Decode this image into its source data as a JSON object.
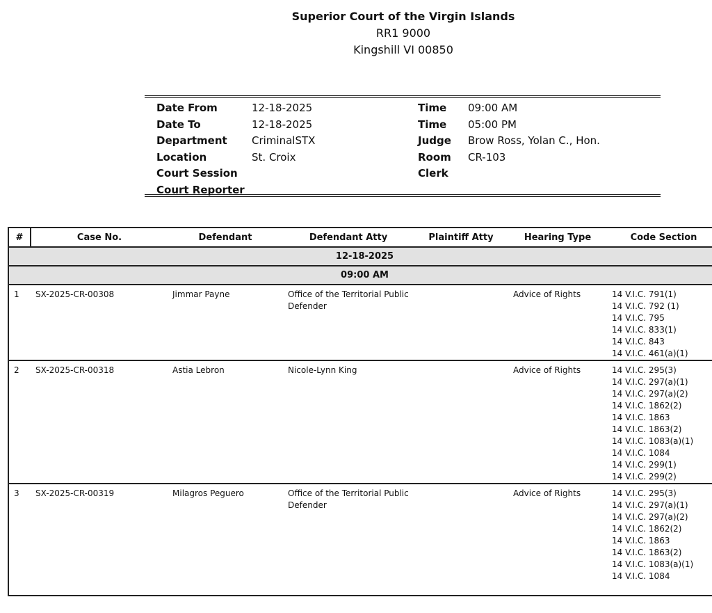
{
  "court": {
    "name": "Superior Court of the Virgin Islands",
    "address1": "RR1 9000",
    "address2": "Kingshill VI 00850"
  },
  "info": [
    {
      "l1": "Date From",
      "v1": "12-18-2025",
      "l2": "Time",
      "v2": "09:00 AM"
    },
    {
      "l1": "Date To",
      "v1": "12-18-2025",
      "l2": "Time",
      "v2": "05:00 PM"
    },
    {
      "l1": "Department",
      "v1": "CriminalSTX",
      "l2": "Judge",
      "v2": "Brow Ross, Yolan C., Hon."
    },
    {
      "l1": "Location",
      "v1": "St. Croix",
      "l2": "Room",
      "v2": "CR-103"
    },
    {
      "l1": "Court Session",
      "v1": "",
      "l2": "Clerk",
      "v2": ""
    },
    {
      "l1": "Court Reporter",
      "v1": "",
      "l2": "",
      "v2": ""
    }
  ],
  "table": {
    "headers": [
      "#",
      "Case No.",
      "Defendant",
      "Defendant Atty",
      "Plaintiff Atty",
      "Hearing Type",
      "Code Section"
    ],
    "date_group": "12-18-2025",
    "time_group": "09:00 AM",
    "rows": [
      {
        "num": "1",
        "case": "SX-2025-CR-00308",
        "defendant": "Jimmar Payne",
        "def_atty": "Office of the Territorial Public Defender",
        "plaintiff_atty": "",
        "hearing": "Advice of Rights",
        "codes": [
          "14 V.I.C. 791(1)",
          "14 V.I.C. 792 (1)",
          "14 V.I.C. 795",
          "14 V.I.C. 833(1)",
          "14 V.I.C. 843",
          "14 V.I.C. 461(a)(1)"
        ]
      },
      {
        "num": "2",
        "case": "SX-2025-CR-00318",
        "defendant": "Astia Lebron",
        "def_atty": "Nicole-Lynn King",
        "plaintiff_atty": "",
        "hearing": "Advice of Rights",
        "codes": [
          "14 V.I.C. 295(3)",
          "14 V.I.C. 297(a)(1)",
          "14 V.I.C. 297(a)(2)",
          "14 V.I.C. 1862(2)",
          "14 V.I.C. 1863",
          "14 V.I.C. 1863(2)",
          "14 V.I.C. 1083(a)(1)",
          "14 V.I.C. 1084",
          "14 V.I.C. 299(1)",
          "14 V.I.C. 299(2)"
        ]
      },
      {
        "num": "3",
        "case": "SX-2025-CR-00319",
        "defendant": "Milagros Peguero",
        "def_atty": "Office of the Territorial Public Defender",
        "plaintiff_atty": "",
        "hearing": "Advice of Rights",
        "codes": [
          "14 V.I.C. 295(3)",
          "14 V.I.C. 297(a)(1)",
          "14 V.I.C. 297(a)(2)",
          "14 V.I.C. 1862(2)",
          "14 V.I.C. 1863",
          "14 V.I.C. 1863(2)",
          "14 V.I.C. 1083(a)(1)",
          "14 V.I.C. 1084"
        ]
      }
    ]
  }
}
